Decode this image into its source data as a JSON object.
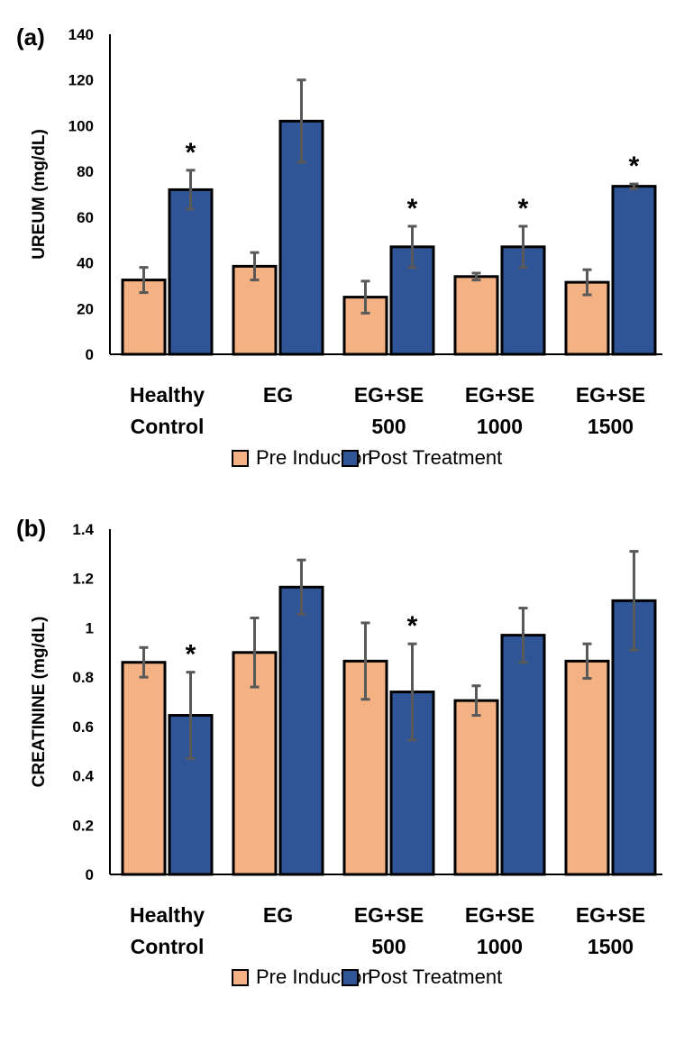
{
  "chart_data": [
    {
      "type": "bar",
      "panel_label": "(a)",
      "ylabel": "UREUM (mg/dL)",
      "ylim": [
        0,
        140
      ],
      "yticks": [
        0,
        20,
        40,
        60,
        80,
        100,
        120,
        140
      ],
      "categories": [
        [
          "Healthy",
          "Control"
        ],
        [
          "EG"
        ],
        [
          "EG+SE",
          "500"
        ],
        [
          "EG+SE",
          "1000"
        ],
        [
          "EG+SE",
          "1500"
        ]
      ],
      "series": [
        {
          "name": "Pre Induction",
          "color": "#f4b183",
          "values": [
            32.5,
            38.5,
            25,
            34,
            31.5
          ],
          "errors": [
            5.5,
            6,
            7,
            1.5,
            5.5
          ]
        },
        {
          "name": "Post Treatment",
          "color": "#2f5597",
          "values": [
            72,
            102,
            47,
            47,
            73.5
          ],
          "errors": [
            8.5,
            18,
            9,
            9,
            1
          ]
        }
      ],
      "significance": [
        {
          "category_index": 0,
          "series_index": 1,
          "mark": "*"
        },
        {
          "category_index": 2,
          "series_index": 1,
          "mark": "*"
        },
        {
          "category_index": 3,
          "series_index": 1,
          "mark": "*"
        },
        {
          "category_index": 4,
          "series_index": 1,
          "mark": "*"
        }
      ],
      "legend": [
        "Pre Induction",
        "Post Treatment"
      ],
      "legend_position": "bottom",
      "grid": false
    },
    {
      "type": "bar",
      "panel_label": "(b)",
      "ylabel": "CREATININE (mg/dL)",
      "ylim": [
        0,
        1.4
      ],
      "yticks": [
        "0",
        "0.2",
        "0.4",
        "0.6",
        "0.8",
        "1",
        "1.2",
        "1.4"
      ],
      "categories": [
        [
          "Healthy",
          "Control"
        ],
        [
          "EG"
        ],
        [
          "EG+SE",
          "500"
        ],
        [
          "EG+SE",
          "1000"
        ],
        [
          "EG+SE",
          "1500"
        ]
      ],
      "series": [
        {
          "name": "Pre Induction",
          "color": "#f4b183",
          "values": [
            0.86,
            0.9,
            0.865,
            0.705,
            0.865
          ],
          "errors": [
            0.06,
            0.14,
            0.155,
            0.06,
            0.07
          ]
        },
        {
          "name": "Post Treatment",
          "color": "#2f5597",
          "values": [
            0.645,
            1.165,
            0.74,
            0.97,
            1.11
          ],
          "errors": [
            0.175,
            0.11,
            0.195,
            0.11,
            0.2
          ]
        }
      ],
      "significance": [
        {
          "category_index": 0,
          "series_index": 1,
          "mark": "*"
        },
        {
          "category_index": 2,
          "series_index": 1,
          "mark": "*"
        }
      ],
      "legend": [
        "Pre Induction",
        "Post Treatment"
      ],
      "legend_position": "bottom",
      "grid": false
    }
  ]
}
